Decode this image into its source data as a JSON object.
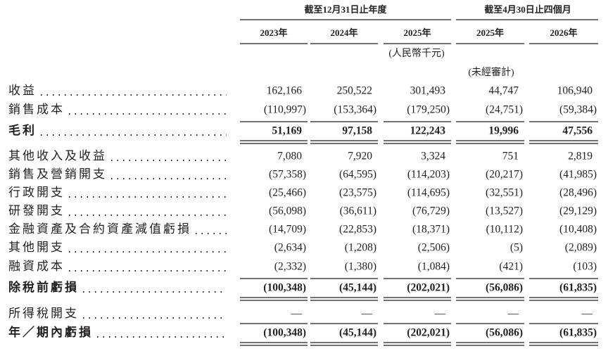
{
  "header": {
    "groups": [
      {
        "title": "截至12月31日止年度"
      },
      {
        "title": "截至4月30日止四個月"
      }
    ],
    "years": [
      "2023年",
      "2024年",
      "2025年",
      "2025年",
      "2026年"
    ],
    "currency_note": "(人民幣千元)",
    "unaudited_note": "(未經審計)"
  },
  "rows": [
    {
      "label": "收益",
      "values": [
        "162,166",
        "250,522",
        "301,493",
        "44,747",
        "106,940"
      ]
    },
    {
      "label": "銷售成本",
      "values": [
        "(110,997)",
        "(153,364)",
        "(179,250)",
        "(24,751)",
        "(59,384)"
      ]
    },
    {
      "label": "毛利",
      "values": [
        "51,169",
        "97,158",
        "122,243",
        "19,996",
        "47,556"
      ]
    },
    {
      "label": "其他收入及收益",
      "values": [
        "7,080",
        "7,920",
        "3,324",
        "751",
        "2,819"
      ]
    },
    {
      "label": "銷售及營銷開支",
      "values": [
        "(57,358)",
        "(64,595)",
        "(114,203)",
        "(20,217)",
        "(41,985)"
      ]
    },
    {
      "label": "行政開支",
      "values": [
        "(25,466)",
        "(23,575)",
        "(114,695)",
        "(32,551)",
        "(28,496)"
      ]
    },
    {
      "label": "研發開支",
      "values": [
        "(56,098)",
        "(36,611)",
        "(76,729)",
        "(13,527)",
        "(29,129)"
      ]
    },
    {
      "label": "金融資產及合約資產減值虧損",
      "values": [
        "(14,709)",
        "(22,853)",
        "(18,371)",
        "(10,112)",
        "(10,408)"
      ]
    },
    {
      "label": "其他開支",
      "values": [
        "(2,634)",
        "(1,208)",
        "(2,506)",
        "(5)",
        "(2,089)"
      ]
    },
    {
      "label": "融資成本",
      "values": [
        "(2,332)",
        "(1,380)",
        "(1,084)",
        "(421)",
        "(103)"
      ]
    },
    {
      "label": "除稅前虧損",
      "values": [
        "(100,348)",
        "(45,144)",
        "(202,021)",
        "(56,086)",
        "(61,835)"
      ]
    },
    {
      "label": "所得稅開支",
      "values": [
        "—",
        "—",
        "—",
        "—",
        "—"
      ]
    },
    {
      "label": "年／期內虧損",
      "values": [
        "(100,348)",
        "(45,144)",
        "(202,021)",
        "(56,086)",
        "(61,835)"
      ]
    }
  ]
}
